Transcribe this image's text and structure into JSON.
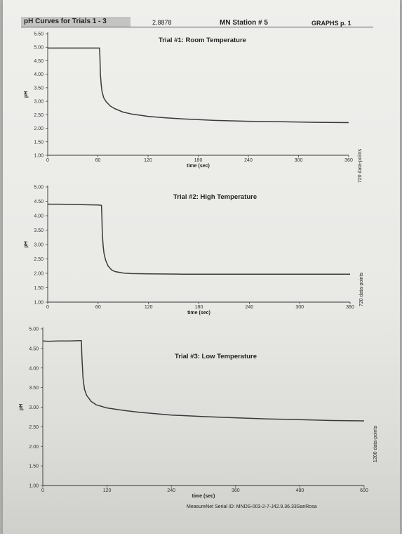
{
  "header": {
    "title": "pH Curves for Trials 1 - 3",
    "mid_value": "2.8878",
    "station": "MN Station # 5",
    "page": "GRAPHS p. 1"
  },
  "footer": {
    "serial": "MeasureNet Serial ID:  MNDS-003-2-7-J42.9.36.33SanRosa"
  },
  "chart_data": [
    {
      "type": "line",
      "title": "Trial #1: Room Temperature",
      "xlabel": "time (sec)",
      "ylabel": "pH",
      "side_note": "720 data-points",
      "xlim": [
        0,
        360
      ],
      "ylim": [
        1.0,
        5.5
      ],
      "xticks": [
        0,
        60,
        120,
        180,
        240,
        300,
        360
      ],
      "yticks": [
        "1.00",
        "1.50",
        "2.00",
        "2.50",
        "3.00",
        "3.50",
        "4.00",
        "4.50",
        "5.00",
        "5.50"
      ],
      "series": [
        {
          "x": [
            0,
            15,
            30,
            45,
            60,
            62,
            62.5,
            63,
            64,
            65,
            67,
            70,
            75,
            80,
            90,
            100,
            120,
            140,
            160,
            180,
            200,
            240,
            280,
            320,
            360
          ],
          "y": [
            4.97,
            4.97,
            4.97,
            4.97,
            4.97,
            4.97,
            4.6,
            4.0,
            3.6,
            3.35,
            3.13,
            2.98,
            2.82,
            2.73,
            2.6,
            2.53,
            2.44,
            2.39,
            2.35,
            2.32,
            2.29,
            2.26,
            2.24,
            2.22,
            2.21
          ]
        }
      ]
    },
    {
      "type": "line",
      "title": "Trial #2: High Temperature",
      "xlabel": "time (sec)",
      "ylabel": "pH",
      "side_note": "720 data-points",
      "xlim": [
        0,
        360
      ],
      "ylim": [
        1.0,
        5.0
      ],
      "xticks": [
        0,
        60,
        120,
        180,
        240,
        300,
        360
      ],
      "yticks": [
        "1.00",
        "1.50",
        "2.00",
        "2.50",
        "3.00",
        "3.50",
        "4.00",
        "4.50",
        "5.00"
      ],
      "series": [
        {
          "x": [
            0,
            2,
            15,
            30,
            45,
            60,
            64,
            64.5,
            65,
            66,
            67,
            69,
            72,
            76,
            80,
            90,
            100,
            120,
            160,
            200,
            240,
            300,
            360
          ],
          "y": [
            4.41,
            4.4,
            4.4,
            4.39,
            4.38,
            4.37,
            4.36,
            4.0,
            3.4,
            2.95,
            2.7,
            2.45,
            2.25,
            2.12,
            2.06,
            2.01,
            1.99,
            1.98,
            1.97,
            1.97,
            1.97,
            1.97,
            1.97
          ]
        }
      ]
    },
    {
      "type": "line",
      "title": "Trial #3: Low Temperature",
      "xlabel": "time (sec)",
      "ylabel": "pH",
      "side_note": "1200 data-points",
      "xlim": [
        0,
        600
      ],
      "ylim": [
        1.0,
        5.0
      ],
      "xticks": [
        0,
        120,
        240,
        360,
        480,
        600
      ],
      "yticks": [
        "1.00",
        "1.50",
        "2.00",
        "2.50",
        "3.00",
        "3.50",
        "4.00",
        "4.50",
        "5.00"
      ],
      "series": [
        {
          "x": [
            0,
            10,
            30,
            50,
            70,
            72,
            73,
            75,
            78,
            82,
            90,
            100,
            120,
            150,
            180,
            240,
            300,
            360,
            420,
            480,
            540,
            600
          ],
          "y": [
            4.69,
            4.68,
            4.69,
            4.69,
            4.7,
            4.7,
            4.3,
            3.75,
            3.45,
            3.3,
            3.15,
            3.06,
            2.98,
            2.92,
            2.87,
            2.8,
            2.76,
            2.73,
            2.7,
            2.68,
            2.66,
            2.65
          ]
        }
      ]
    }
  ]
}
